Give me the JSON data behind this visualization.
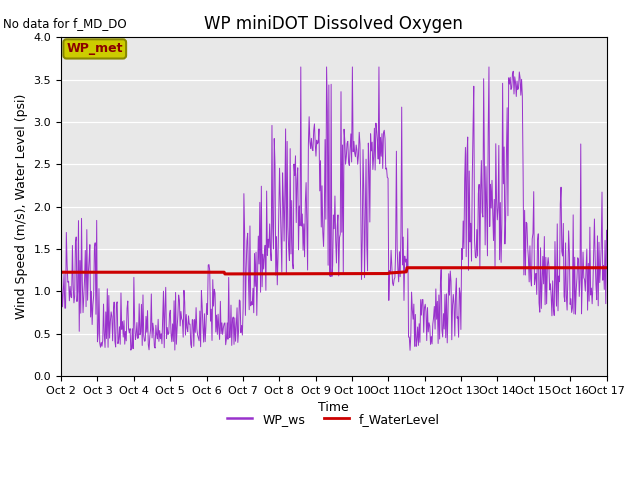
{
  "title": "WP miniDOT Dissolved Oxygen",
  "no_data_text": "No data for f_MD_DO",
  "xlabel": "Time",
  "ylabel": "Wind Speed (m/s), Water Level (psi)",
  "ylim": [
    0.0,
    4.0
  ],
  "yticks": [
    0.0,
    0.5,
    1.0,
    1.5,
    2.0,
    2.5,
    3.0,
    3.5,
    4.0
  ],
  "x_tick_labels": [
    "Oct 2",
    "Oct 3",
    "Oct 4",
    "Oct 5",
    "Oct 6",
    "Oct 7",
    "Oct 8",
    "Oct 9",
    "Oct 10",
    "Oct 11",
    "Oct 12",
    "Oct 13",
    "Oct 14",
    "Oct 15",
    "Oct 16",
    "Oct 17"
  ],
  "wp_ws_color": "#9932CC",
  "f_water_level_color": "#CC0000",
  "legend_label_ws": "WP_ws",
  "legend_label_wl": "f_WaterLevel",
  "annotation_box_label": "WP_met",
  "annotation_box_facecolor": "#CCCC00",
  "annotation_box_edgecolor": "#888800",
  "annotation_box_text_color": "#8B0000",
  "background_color": "#E8E8E8",
  "title_fontsize": 12,
  "tick_fontsize": 8,
  "ylabel_fontsize": 9,
  "xlabel_fontsize": 9
}
